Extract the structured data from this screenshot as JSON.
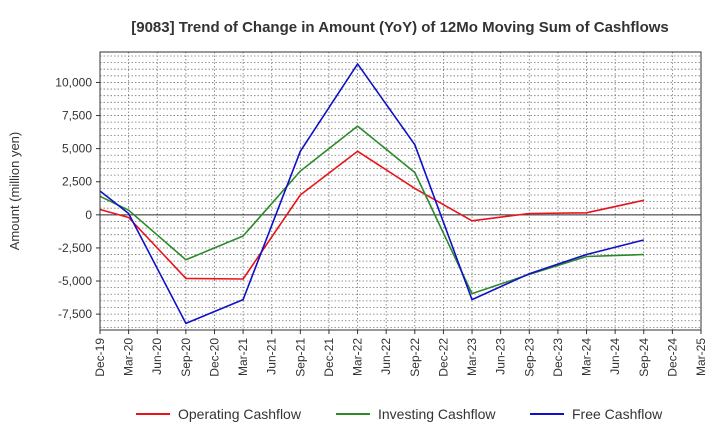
{
  "chart_data": {
    "type": "line",
    "title": "[9083]  Trend of Change in Amount (YoY) of 12Mo Moving Sum of Cashflows",
    "xlabel": "",
    "ylabel": "Amount (million yen)",
    "categories": [
      "Dec-19",
      "Mar-20",
      "Jun-20",
      "Sep-20",
      "Dec-20",
      "Mar-21",
      "Jun-21",
      "Sep-21",
      "Dec-21",
      "Mar-22",
      "Jun-22",
      "Sep-22",
      "Dec-22",
      "Mar-23",
      "Jun-23",
      "Sep-23",
      "Dec-23",
      "Mar-24",
      "Jun-24",
      "Sep-24",
      "Dec-24",
      "Mar-25"
    ],
    "yticks": [
      10000,
      7500,
      5000,
      2500,
      0,
      -2500,
      -5000,
      -7500
    ],
    "ytick_labels": [
      "10,000",
      "7,500",
      "5,000",
      "2,500",
      "0",
      "-2,500",
      "-5,000",
      "-7,500"
    ],
    "ylim": [
      -8700,
      12300
    ],
    "grid": true,
    "legend_position": "bottom",
    "series": [
      {
        "name": "Operating Cashflow",
        "color": "#e8141b",
        "values": [
          400,
          -200,
          null,
          -4800,
          null,
          -4850,
          null,
          1500,
          null,
          4800,
          null,
          2000,
          null,
          -450,
          null,
          100,
          null,
          150,
          null,
          1100,
          null,
          null
        ]
      },
      {
        "name": "Investing Cashflow",
        "color": "#2b8a2b",
        "values": [
          1400,
          350,
          null,
          -3400,
          null,
          -1600,
          null,
          3300,
          null,
          6700,
          null,
          3200,
          null,
          -5950,
          null,
          -4500,
          null,
          -3150,
          null,
          -3000,
          null,
          null
        ]
      },
      {
        "name": "Free Cashflow",
        "color": "#1010c8",
        "values": [
          1800,
          100,
          null,
          -8200,
          null,
          -6400,
          null,
          4800,
          null,
          11400,
          null,
          5300,
          null,
          -6400,
          null,
          -4450,
          null,
          -3000,
          null,
          -1900,
          null,
          null
        ]
      }
    ]
  }
}
